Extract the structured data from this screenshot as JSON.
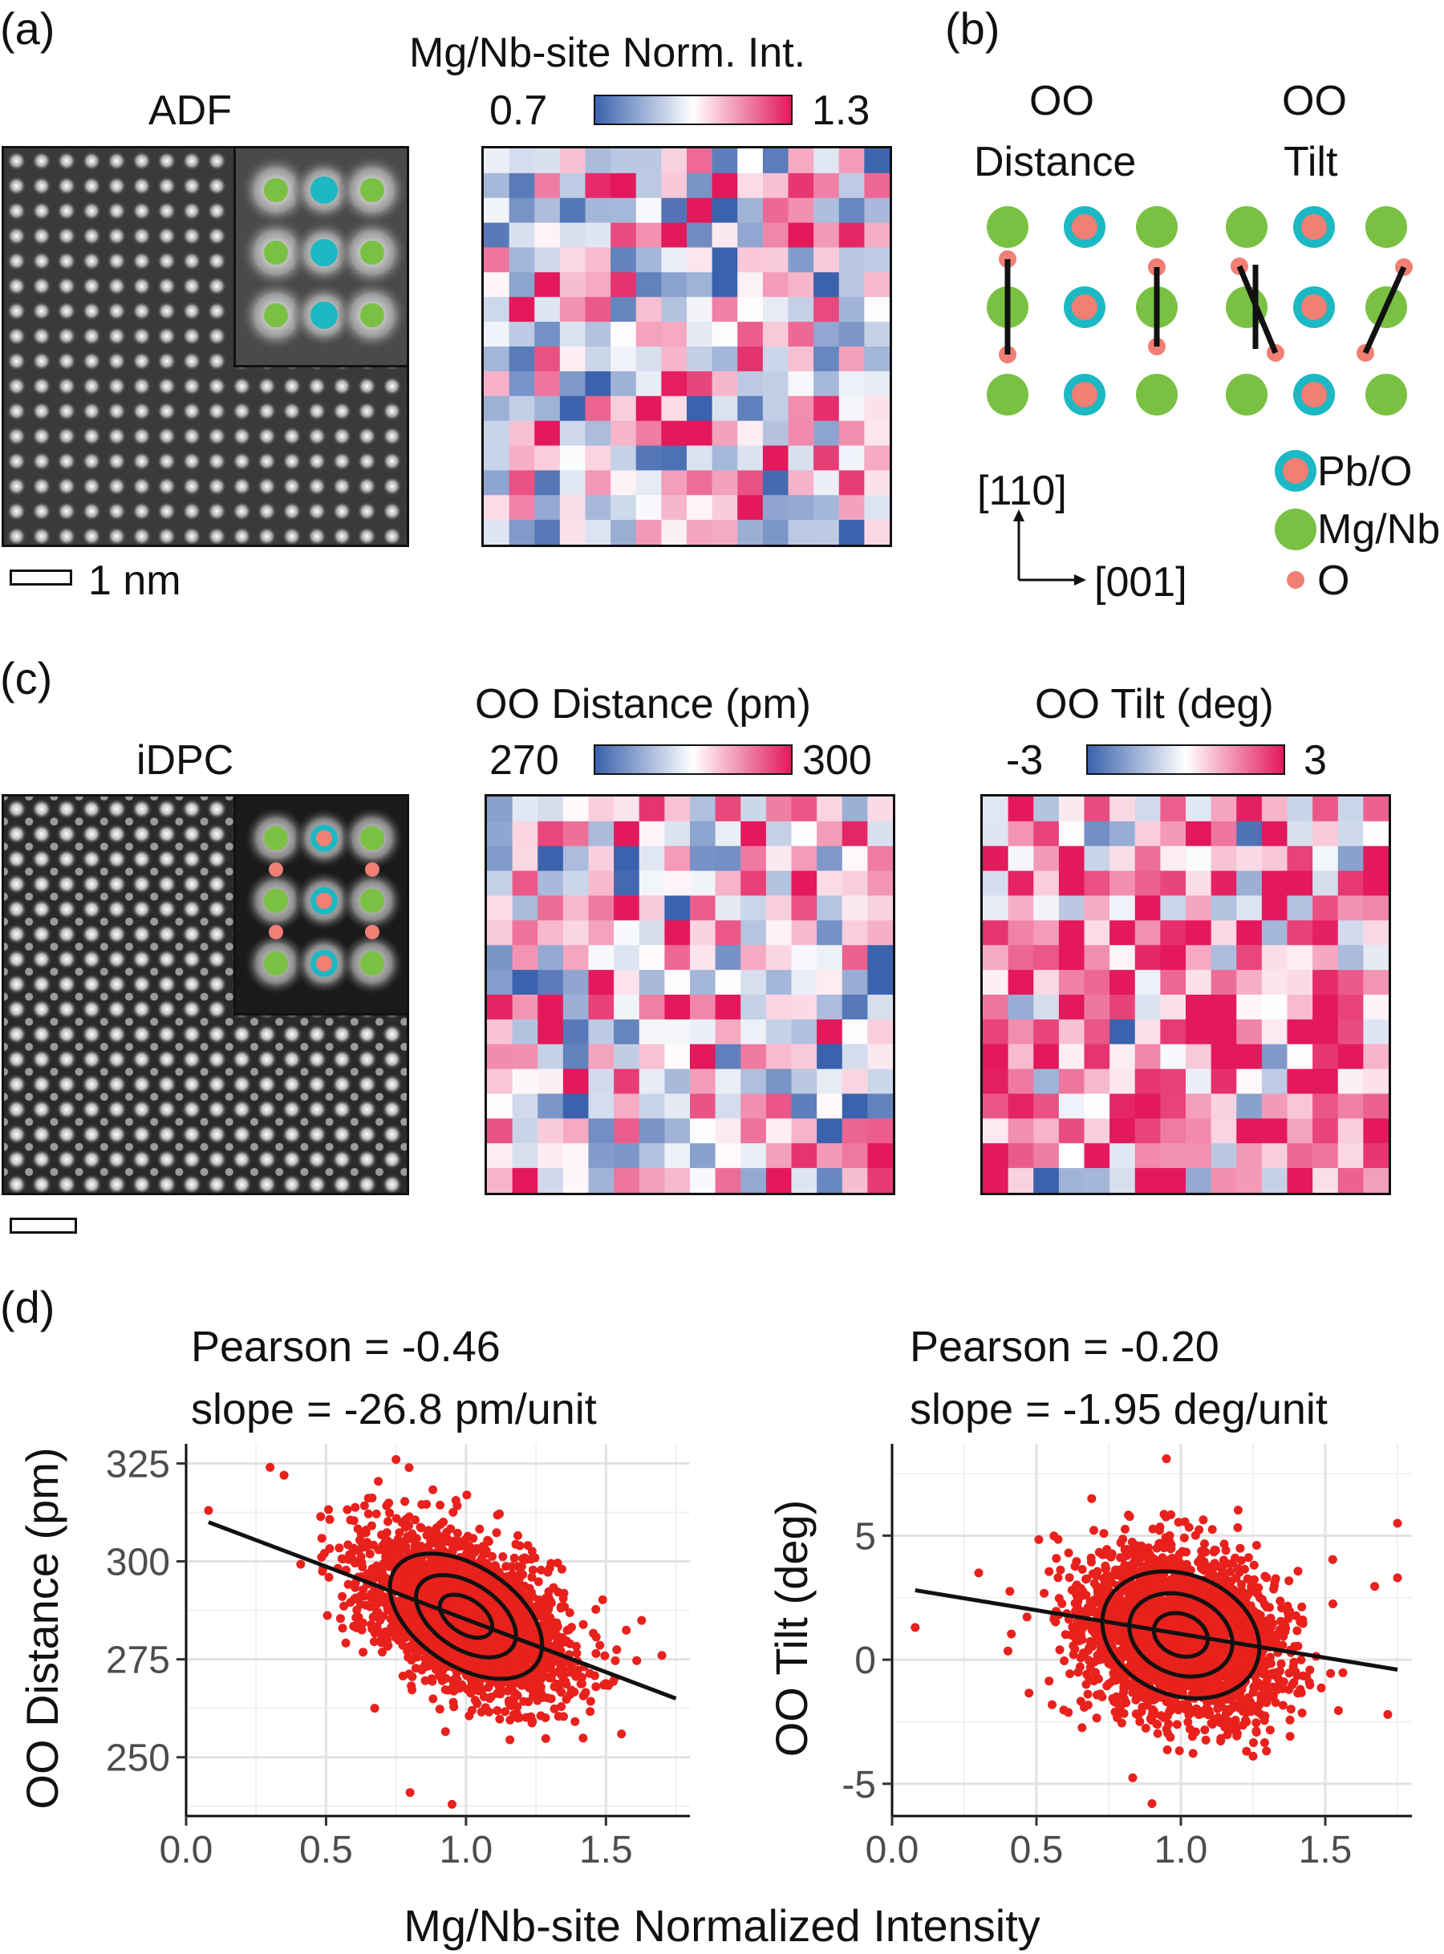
{
  "panel_labels": {
    "a": "(a)",
    "b": "(b)",
    "c": "(c)",
    "d": "(d)"
  },
  "panel_a": {
    "image_title": "ADF",
    "colorbar_title": "Mg/Nb-site Norm. Int.",
    "colorbar_min": "0.7",
    "colorbar_max": "1.3",
    "scale_label": "1 nm"
  },
  "panel_b": {
    "distance_title_1": "OO",
    "distance_title_2": "Distance",
    "tilt_title_1": "OO",
    "tilt_title_2": "Tilt",
    "axis_vertical": "[110]",
    "axis_horizontal": "[001]",
    "legend": [
      {
        "label": "Pb/O",
        "color": "#1cb8c3"
      },
      {
        "label": "Mg/Nb",
        "color": "#7ac143"
      },
      {
        "label": "O",
        "color": "#f07f74"
      }
    ]
  },
  "panel_c": {
    "image_title": "iDPC",
    "map1_title": "OO Distance (pm)",
    "map1_min": "270",
    "map1_max": "300",
    "map2_title": "OO Tilt (deg)",
    "map2_min": "-3",
    "map2_max": "3"
  },
  "colors": {
    "low": "#3b62ad",
    "mid": "#ffffff",
    "high": "#e3195b",
    "green": "#7ac143",
    "cyan": "#1cb8c3",
    "salmon": "#f07f74",
    "points": "#e8211d"
  },
  "chart_data": [
    {
      "type": "scatter",
      "title_line1": "Pearson = -0.46",
      "title_line2": "slope = -26.8 pm/unit",
      "xlabel": "Mg/Nb-site Normalized Intensity",
      "ylabel": "OO Distance (pm)",
      "xlim": [
        0,
        1.8
      ],
      "ylim": [
        235,
        330
      ],
      "xticks": [
        "0.0",
        "0.5",
        "1.0",
        "1.5"
      ],
      "yticks": [
        "250",
        "275",
        "300",
        "325"
      ],
      "fit_line": {
        "x": [
          0.08,
          1.75
        ],
        "y": [
          310,
          265
        ]
      },
      "center": [
        1.0,
        286
      ],
      "spread": [
        0.17,
        10
      ],
      "correlation": -0.46,
      "outliers": [
        [
          0.08,
          313
        ],
        [
          0.3,
          324
        ],
        [
          0.35,
          322
        ],
        [
          0.75,
          326
        ],
        [
          0.8,
          241
        ],
        [
          0.95,
          238
        ],
        [
          1.7,
          276
        ]
      ]
    },
    {
      "type": "scatter",
      "title_line1": "Pearson = -0.20",
      "title_line2": "slope = -1.95 deg/unit",
      "xlabel": "Mg/Nb-site Normalized Intensity",
      "ylabel": "OO Tilt (deg)",
      "xlim": [
        0,
        1.8
      ],
      "ylim": [
        -6.3,
        8.7
      ],
      "xticks": [
        "0.0",
        "0.5",
        "1.0",
        "1.5"
      ],
      "yticks": [
        "-5",
        "0",
        "5"
      ],
      "fit_line": {
        "x": [
          0.08,
          1.75
        ],
        "y": [
          2.8,
          -0.4
        ]
      },
      "center": [
        1.0,
        1.0
      ],
      "spread": [
        0.17,
        1.6
      ],
      "correlation": -0.2,
      "outliers": [
        [
          0.08,
          1.3
        ],
        [
          0.3,
          3.5
        ],
        [
          0.95,
          8.1
        ],
        [
          0.9,
          -5.8
        ],
        [
          1.75,
          5.5
        ],
        [
          1.75,
          3.3
        ]
      ]
    }
  ]
}
